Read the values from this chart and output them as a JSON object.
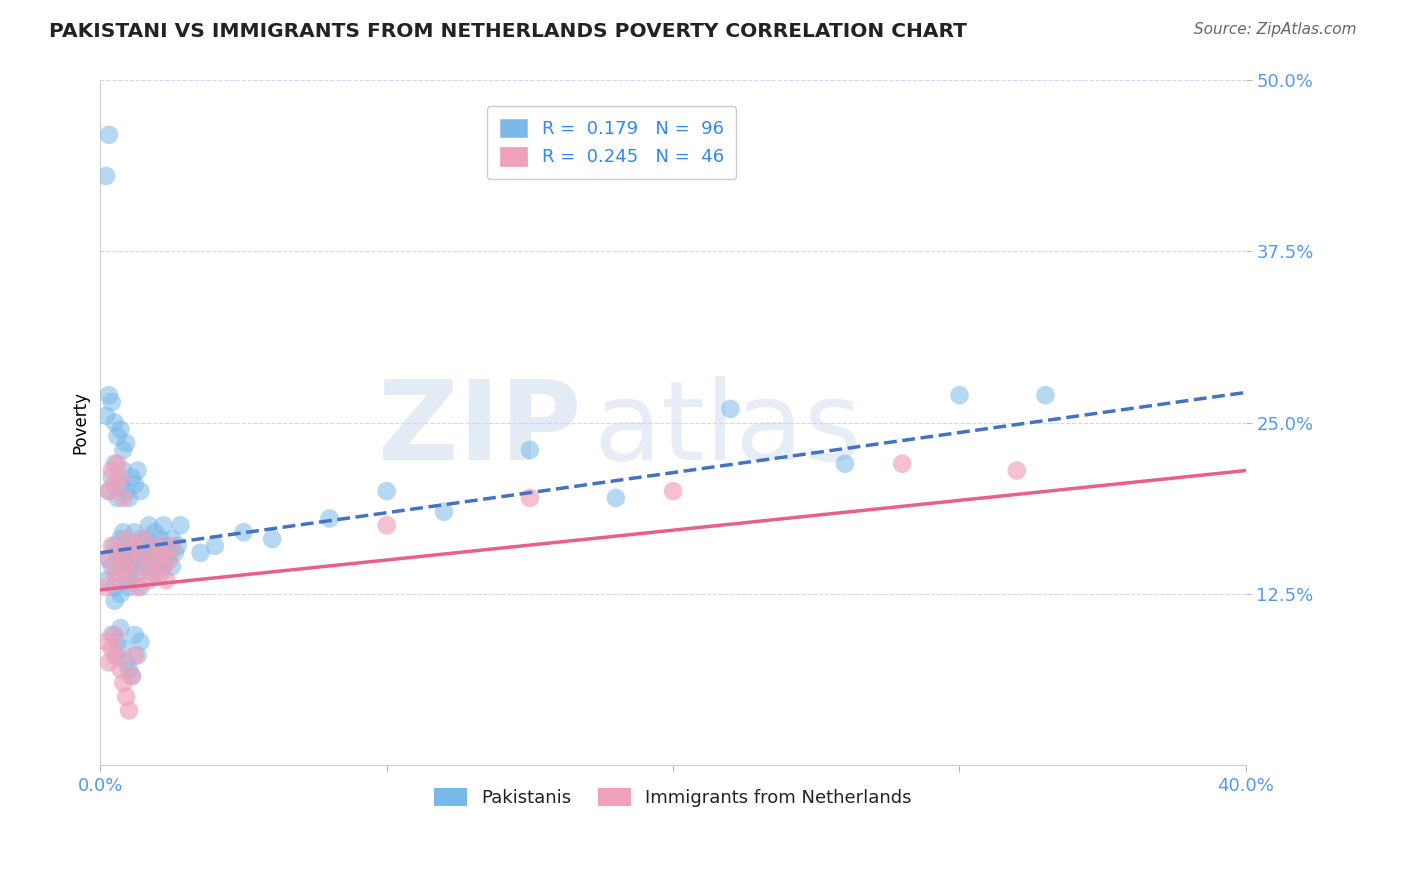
{
  "title": "PAKISTANI VS IMMIGRANTS FROM NETHERLANDS POVERTY CORRELATION CHART",
  "source_text": "Source: ZipAtlas.com",
  "ylabel": "Poverty",
  "xlim": [
    0.0,
    0.4
  ],
  "ylim": [
    0.0,
    0.5
  ],
  "xticks": [
    0.0,
    0.1,
    0.2,
    0.3,
    0.4
  ],
  "xtick_labels": [
    "0.0%",
    "",
    "",
    "",
    "40.0%"
  ],
  "ytick_positions": [
    0.125,
    0.25,
    0.375,
    0.5
  ],
  "ytick_labels": [
    "12.5%",
    "25.0%",
    "37.5%",
    "50.0%"
  ],
  "background_color": "#ffffff",
  "grid_color": "#d0d8e8",
  "legend_r1": "R =  0.179",
  "legend_n1": "N =  96",
  "legend_r2": "R =  0.245",
  "legend_n2": "N =  46",
  "blue_scatter_color": "#7ab8e8",
  "pink_scatter_color": "#f0a0b8",
  "blue_line_color": "#4472c4",
  "pink_line_color": "#e8608a",
  "blue_line_start": 0.155,
  "blue_line_end": 0.272,
  "pink_line_start": 0.128,
  "pink_line_end": 0.215,
  "pakistani_x": [
    0.002,
    0.003,
    0.004,
    0.005,
    0.005,
    0.005,
    0.006,
    0.006,
    0.007,
    0.007,
    0.008,
    0.008,
    0.009,
    0.009,
    0.01,
    0.01,
    0.01,
    0.01,
    0.011,
    0.011,
    0.012,
    0.012,
    0.013,
    0.013,
    0.014,
    0.014,
    0.015,
    0.015,
    0.016,
    0.016,
    0.017,
    0.017,
    0.018,
    0.018,
    0.019,
    0.019,
    0.02,
    0.02,
    0.021,
    0.021,
    0.022,
    0.022,
    0.023,
    0.023,
    0.024,
    0.025,
    0.025,
    0.026,
    0.027,
    0.028,
    0.003,
    0.004,
    0.005,
    0.006,
    0.007,
    0.008,
    0.009,
    0.01,
    0.011,
    0.012,
    0.013,
    0.014,
    0.002,
    0.003,
    0.004,
    0.005,
    0.006,
    0.007,
    0.008,
    0.009,
    0.035,
    0.04,
    0.05,
    0.06,
    0.08,
    0.1,
    0.12,
    0.15,
    0.18,
    0.22,
    0.26,
    0.3,
    0.33,
    0.002,
    0.003,
    0.004,
    0.005,
    0.006,
    0.007,
    0.008,
    0.009,
    0.01,
    0.011,
    0.012,
    0.013,
    0.014
  ],
  "pakistani_y": [
    0.135,
    0.15,
    0.145,
    0.13,
    0.12,
    0.16,
    0.155,
    0.14,
    0.165,
    0.125,
    0.15,
    0.17,
    0.145,
    0.135,
    0.16,
    0.15,
    0.14,
    0.13,
    0.155,
    0.145,
    0.17,
    0.16,
    0.155,
    0.14,
    0.165,
    0.13,
    0.155,
    0.145,
    0.15,
    0.165,
    0.175,
    0.16,
    0.14,
    0.155,
    0.145,
    0.17,
    0.16,
    0.15,
    0.165,
    0.14,
    0.175,
    0.145,
    0.16,
    0.15,
    0.155,
    0.165,
    0.145,
    0.155,
    0.16,
    0.175,
    0.2,
    0.21,
    0.22,
    0.195,
    0.205,
    0.215,
    0.2,
    0.195,
    0.21,
    0.205,
    0.215,
    0.2,
    0.255,
    0.27,
    0.265,
    0.25,
    0.24,
    0.245,
    0.23,
    0.235,
    0.155,
    0.16,
    0.17,
    0.165,
    0.18,
    0.2,
    0.185,
    0.23,
    0.195,
    0.26,
    0.22,
    0.27,
    0.27,
    0.43,
    0.46,
    0.095,
    0.08,
    0.09,
    0.1,
    0.085,
    0.075,
    0.07,
    0.065,
    0.095,
    0.08,
    0.09
  ],
  "netherlands_x": [
    0.002,
    0.003,
    0.004,
    0.005,
    0.006,
    0.007,
    0.008,
    0.009,
    0.01,
    0.011,
    0.012,
    0.013,
    0.014,
    0.015,
    0.016,
    0.017,
    0.018,
    0.019,
    0.02,
    0.021,
    0.022,
    0.023,
    0.024,
    0.025,
    0.003,
    0.004,
    0.005,
    0.006,
    0.007,
    0.008,
    0.1,
    0.15,
    0.2,
    0.28,
    0.32,
    0.002,
    0.003,
    0.004,
    0.005,
    0.006,
    0.007,
    0.008,
    0.009,
    0.01,
    0.011,
    0.012
  ],
  "netherlands_y": [
    0.13,
    0.15,
    0.16,
    0.14,
    0.155,
    0.135,
    0.145,
    0.165,
    0.15,
    0.14,
    0.16,
    0.13,
    0.155,
    0.165,
    0.145,
    0.135,
    0.15,
    0.14,
    0.16,
    0.155,
    0.145,
    0.135,
    0.15,
    0.16,
    0.2,
    0.215,
    0.205,
    0.22,
    0.21,
    0.195,
    0.175,
    0.195,
    0.2,
    0.22,
    0.215,
    0.09,
    0.075,
    0.085,
    0.095,
    0.08,
    0.07,
    0.06,
    0.05,
    0.04,
    0.065,
    0.08
  ]
}
